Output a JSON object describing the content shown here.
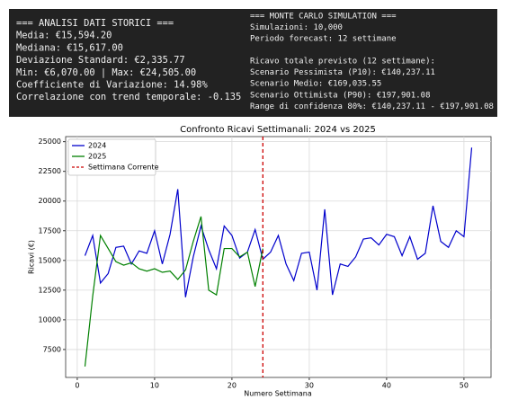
{
  "panels": {
    "left": [
      "=== ANALISI DATI STORICI ===",
      "Media: €15,594.20",
      "Mediana: €15,617.00",
      "Deviazione Standard: €2,335.77",
      "Min: €6,070.00 | Max: €24,505.00",
      "Coefficiente di Variazione: 14.98%",
      "Correlazione con trend temporale: -0.135"
    ],
    "right_header": [
      "=== MONTE CARLO SIMULATION ===",
      "Simulazioni: 10,000",
      "Periodo forecast: 12 settimane"
    ],
    "right_forecast": [
      "Ricavo totale previsto (12 settimane):",
      "Scenario Pessimista (P10): €140,237.11",
      "Scenario Medio: €169,035.55",
      "Scenario Ottimista (P90): €197,901.08",
      "Range di confidenza 80%: €140,237.11 - €197,901.08"
    ]
  },
  "chart_data": {
    "type": "line",
    "title": "Confronto Ricavi Settimanali: 2024 vs 2025",
    "x_label": "Numero Settimana",
    "y_label": "Ricavi (€)",
    "xlim": [
      -1.5,
      53.5
    ],
    "ylim": [
      5148,
      25427
    ],
    "xticks": [
      0,
      10,
      20,
      30,
      40,
      50
    ],
    "yticks": [
      7500,
      10000,
      12500,
      15000,
      17500,
      20000,
      22500,
      25000
    ],
    "grid": true,
    "legend": "upper left",
    "series": [
      {
        "name": "2024",
        "color": "#0000cc",
        "x": [
          1,
          2,
          3,
          4,
          5,
          6,
          7,
          8,
          9,
          10,
          11,
          12,
          13,
          14,
          15,
          16,
          17,
          18,
          19,
          20,
          21,
          22,
          23,
          24,
          25,
          26,
          27,
          28,
          29,
          30,
          31,
          32,
          33,
          34,
          35,
          36,
          37,
          38,
          39,
          40,
          41,
          42,
          43,
          44,
          45,
          46,
          47,
          48,
          49,
          50,
          51
        ],
        "values": [
          15400,
          17100,
          13100,
          13900,
          16100,
          16200,
          14700,
          15800,
          15600,
          17500,
          14700,
          17200,
          21000,
          11900,
          15300,
          17900,
          15900,
          14300,
          17900,
          17100,
          15200,
          15700,
          17600,
          15100,
          15700,
          17100,
          14700,
          13300,
          15600,
          15700,
          12500,
          19300,
          12100,
          14700,
          14500,
          15300,
          16800,
          16900,
          16300,
          17200,
          17000,
          15400,
          17000,
          15100,
          15600,
          19600,
          16600,
          16100,
          17500,
          17000,
          24500
        ]
      },
      {
        "name": "2025",
        "color": "#008000",
        "x": [
          1,
          2,
          3,
          4,
          5,
          6,
          7,
          8,
          9,
          10,
          11,
          12,
          13,
          14,
          15,
          16,
          17,
          18,
          19,
          20,
          21,
          22,
          23,
          24
        ],
        "values": [
          6070,
          12000,
          17100,
          16000,
          14900,
          14600,
          14800,
          14300,
          14100,
          14300,
          14000,
          14100,
          13400,
          14200,
          16600,
          18700,
          12500,
          12100,
          16000,
          16000,
          15300,
          15700,
          12800,
          16000
        ]
      }
    ],
    "vlines": [
      {
        "name": "Settimana Corrente",
        "x": 24,
        "color": "#cc0000"
      }
    ]
  }
}
